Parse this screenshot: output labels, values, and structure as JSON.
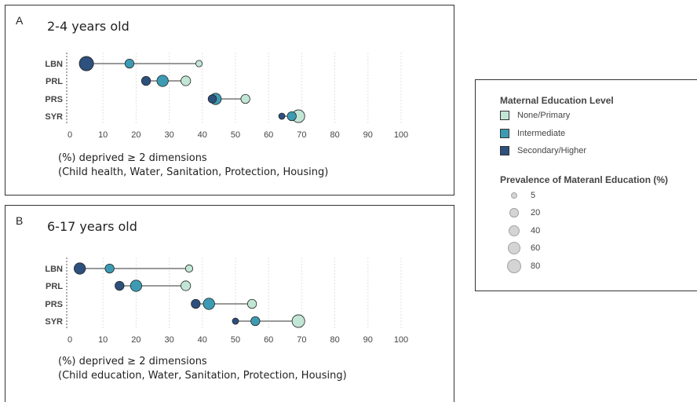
{
  "panels": [
    {
      "letter": "A",
      "title": "2-4 years old",
      "xlabel_line1": "(%) deprived ≥ 2 dimensions",
      "xlabel_line2": "(Child health, Water, Sanitation, Protection, Housing)"
    },
    {
      "letter": "B",
      "title": "6-17 years old",
      "xlabel_line1": "(%) deprived ≥ 2 dimensions",
      "xlabel_line2": "(Child education, Water, Sanitation, Protection, Housing)"
    }
  ],
  "legend": {
    "color_title": "Maternal Education Level",
    "levels": [
      {
        "label": "None/Primary",
        "color": "#c2e6d6"
      },
      {
        "label": "Intermediate",
        "color": "#3c9bb3"
      },
      {
        "label": "Secondary/Higher",
        "color": "#2d507d"
      }
    ],
    "size_title": "Prevalence of Materanl Education (%)",
    "sizes": [
      {
        "label": "5",
        "value": 5
      },
      {
        "label": "20",
        "value": 20
      },
      {
        "label": "40",
        "value": 40
      },
      {
        "label": "60",
        "value": 60
      },
      {
        "label": "80",
        "value": 80
      }
    ]
  },
  "chart_data": [
    {
      "type": "scatter",
      "title": "2-4 years old",
      "xlabel": "(%) deprived ≥ 2 dimensions (Child health, Water, Sanitation, Protection, Housing)",
      "xlim": [
        0,
        100
      ],
      "xticks": [
        0,
        10,
        20,
        30,
        40,
        50,
        60,
        70,
        80,
        90,
        100
      ],
      "grid": "vertical dotted",
      "categories": [
        "LBN",
        "PRL",
        "PRS",
        "SYR"
      ],
      "series": [
        {
          "name": "None/Primary",
          "x": [
            39,
            35,
            53,
            69
          ],
          "size": [
            6,
            25,
            20,
            55
          ]
        },
        {
          "name": "Intermediate",
          "x": [
            18,
            28,
            44,
            67
          ],
          "size": [
            20,
            40,
            40,
            20
          ]
        },
        {
          "name": "Secondary/Higher",
          "x": [
            5,
            23,
            43,
            64
          ],
          "size": [
            75,
            20,
            15,
            5
          ]
        }
      ]
    },
    {
      "type": "scatter",
      "title": "6-17 years old",
      "xlabel": "(%) deprived ≥ 2 dimensions (Child education, Water, Sanitation, Protection, Housing)",
      "xlim": [
        0,
        100
      ],
      "xticks": [
        0,
        10,
        20,
        30,
        40,
        50,
        60,
        70,
        80,
        90,
        100
      ],
      "grid": "vertical dotted",
      "categories": [
        "LBN",
        "PRL",
        "PRS",
        "SYR"
      ],
      "series": [
        {
          "name": "None/Primary",
          "x": [
            36,
            35,
            55,
            69
          ],
          "size": [
            10,
            25,
            20,
            55
          ]
        },
        {
          "name": "Intermediate",
          "x": [
            12,
            20,
            42,
            56
          ],
          "size": [
            20,
            40,
            40,
            20
          ]
        },
        {
          "name": "Secondary/Higher",
          "x": [
            3,
            15,
            38,
            50
          ],
          "size": [
            40,
            20,
            20,
            5
          ]
        }
      ]
    }
  ]
}
